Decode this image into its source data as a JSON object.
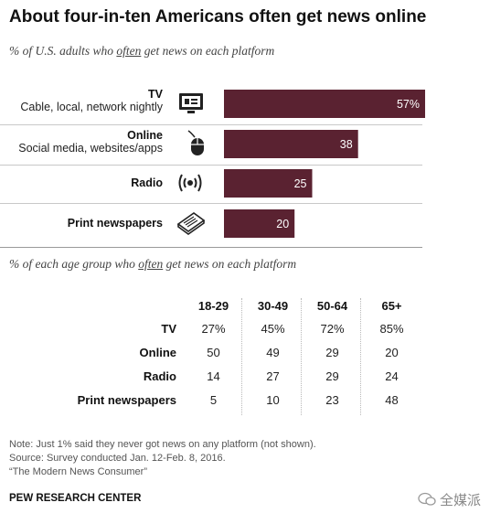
{
  "title": "About four-in-ten  Americans often get news online",
  "subtitle1": {
    "pre": "% of U.S. adults who ",
    "em": "often",
    "post": " get news on each platform"
  },
  "subtitle2": {
    "pre": "% of each age group who ",
    "em": "often",
    "post": " get news on each platform"
  },
  "platforms": [
    {
      "label": "TV",
      "sublabel": "Cable, local, network nightly",
      "icon": "tv-icon"
    },
    {
      "label": "Online",
      "sublabel": "Social media, websites/apps",
      "icon": "mouse-icon"
    },
    {
      "label": "Radio",
      "sublabel": "",
      "icon": "radio-waves-icon"
    },
    {
      "label": "Print newspapers",
      "sublabel": "",
      "icon": "newspaper-icon"
    }
  ],
  "chart_data": [
    {
      "type": "bar",
      "orientation": "horizontal",
      "categories": [
        "TV",
        "Online",
        "Radio",
        "Print newspapers"
      ],
      "values": [
        57,
        38,
        25,
        20
      ],
      "value_labels": [
        "57%",
        "38",
        "25",
        "20"
      ],
      "title": "About four-in-ten  Americans often get news online",
      "subtitle": "% of U.S. adults who often get news on each platform",
      "bar_color": "#5a2231"
    },
    {
      "type": "table",
      "subtitle": "% of each age group who often get news on each platform",
      "columns": [
        "18-29",
        "30-49",
        "50-64",
        "65+"
      ],
      "rows": [
        {
          "label": "TV",
          "values": [
            "27%",
            "45%",
            "72%",
            "85%"
          ]
        },
        {
          "label": "Online",
          "values": [
            "50",
            "49",
            "29",
            "20"
          ]
        },
        {
          "label": "Radio",
          "values": [
            "14",
            "27",
            "29",
            "24"
          ]
        },
        {
          "label": "Print newspapers",
          "values": [
            "5",
            "10",
            "23",
            "48"
          ]
        }
      ]
    }
  ],
  "notes": {
    "note": "Note: Just 1% said they never got news on any platform (not shown).",
    "source": "Source: Survey conducted Jan. 12-Feb. 8, 2016.",
    "report": "“The Modern News Consumer”"
  },
  "brand": "PEW RESEARCH CENTER",
  "watermark": "全媒派"
}
